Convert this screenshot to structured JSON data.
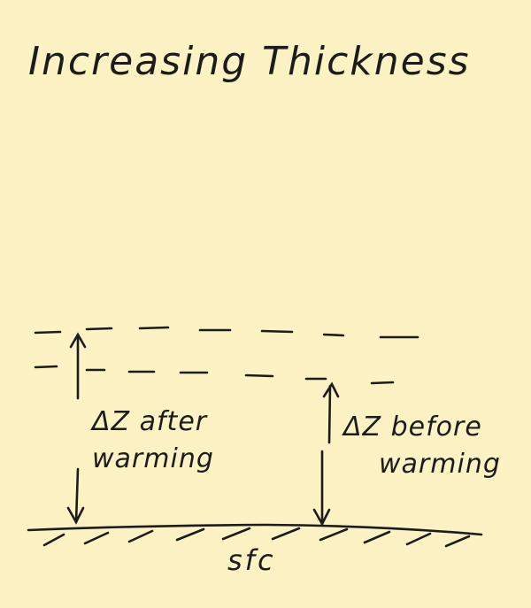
{
  "title": "Increasing Thickness",
  "labels": {
    "after_line1": "ΔZ after",
    "after_line2": "warming",
    "before_line1": "ΔZ before",
    "before_line2": "warming",
    "surface": "sfc"
  }
}
